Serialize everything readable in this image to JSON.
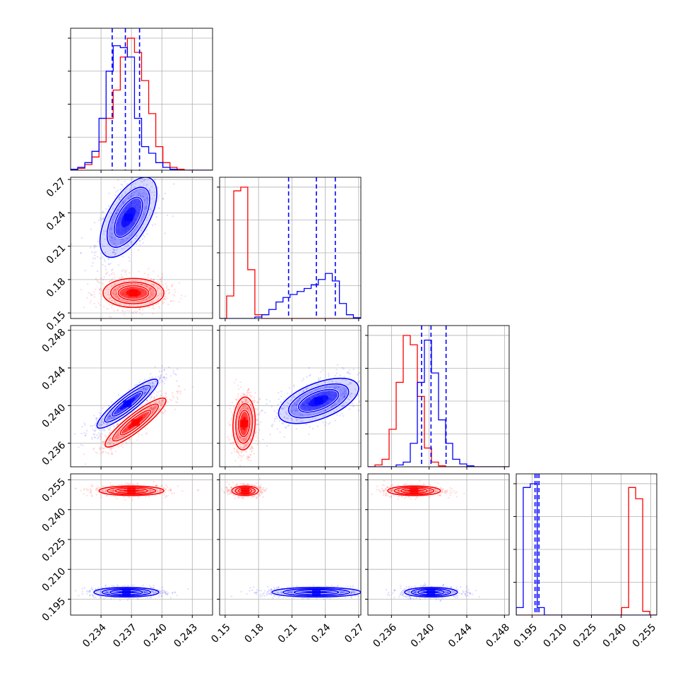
{
  "chart_data": {
    "type": "corner",
    "description_colors": {
      "series_a": "#0000ff",
      "series_b": "#ff0000"
    },
    "grid": true,
    "parameters": [
      {
        "range": [
          0.231,
          0.245
        ]
      },
      {
        "range": [
          0.145,
          0.272
        ]
      },
      {
        "range": [
          0.2335,
          0.2485
        ]
      },
      {
        "range": [
          0.187,
          0.258
        ]
      }
    ],
    "tick_labels": [
      [
        "0.234",
        "0.237",
        "0.240",
        "0.243"
      ],
      [
        "0.15",
        "0.18",
        "0.21",
        "0.24",
        "0.27"
      ],
      [
        "0.236",
        "0.240",
        "0.244",
        "0.248"
      ],
      [
        "0.195",
        "0.210",
        "0.225",
        "0.240",
        "0.255"
      ]
    ],
    "tick_values": [
      [
        0.234,
        0.237,
        0.24,
        0.243
      ],
      [
        0.15,
        0.18,
        0.21,
        0.24,
        0.27
      ],
      [
        0.236,
        0.24,
        0.244,
        0.248
      ],
      [
        0.195,
        0.21,
        0.225,
        0.24,
        0.255
      ]
    ],
    "quantiles_blue": [
      [
        0.2351,
        0.2364,
        0.2378
      ],
      [
        0.207,
        0.232,
        0.249
      ],
      [
        0.2392,
        0.2402,
        0.2418
      ],
      [
        0.1965,
        0.1975,
        0.1985
      ]
    ],
    "series": [
      {
        "color": "#0000ff",
        "means": [
          0.2365,
          0.23,
          0.2402,
          0.1975
        ],
        "sds": [
          0.0012,
          0.02,
          0.0011,
          0.0012
        ]
      },
      {
        "color": "#ff0000",
        "means": [
          0.2372,
          0.168,
          0.2385,
          0.2495
        ],
        "sds": [
          0.0012,
          0.006,
          0.0012,
          0.0015
        ]
      }
    ],
    "blobs": [
      {
        "i": 0,
        "j": 1,
        "color": "#0000ff",
        "center": [
          0.2367,
          0.236
        ],
        "sx": 0.0014,
        "sy": 0.018,
        "rho": 0.6
      },
      {
        "i": 0,
        "j": 1,
        "color": "#ff0000",
        "center": [
          0.2372,
          0.168
        ],
        "sx": 0.0015,
        "sy": 0.0065,
        "rho": 0.0
      },
      {
        "i": 0,
        "j": 2,
        "color": "#0000ff",
        "center": [
          0.2366,
          0.2402
        ],
        "sx": 0.0015,
        "sy": 0.0013,
        "rho": 0.9
      },
      {
        "i": 0,
        "j": 2,
        "color": "#ff0000",
        "center": [
          0.2374,
          0.2382
        ],
        "sx": 0.0015,
        "sy": 0.0013,
        "rho": 0.9
      },
      {
        "i": 1,
        "j": 2,
        "color": "#0000ff",
        "center": [
          0.234,
          0.2405
        ],
        "sx": 0.018,
        "sy": 0.0012,
        "rho": 0.55
      },
      {
        "i": 1,
        "j": 2,
        "color": "#ff0000",
        "center": [
          0.167,
          0.2381
        ],
        "sx": 0.005,
        "sy": 0.0014,
        "rho": 0.1
      },
      {
        "i": 0,
        "j": 3,
        "color": "#ff0000",
        "center": [
          0.237,
          0.2495
        ],
        "sx": 0.0016,
        "sy": 0.0012,
        "rho": 0.0
      },
      {
        "i": 0,
        "j": 3,
        "color": "#0000ff",
        "center": [
          0.2365,
          0.1985
        ],
        "sx": 0.0016,
        "sy": 0.0012,
        "rho": 0.0
      },
      {
        "i": 1,
        "j": 3,
        "color": "#ff0000",
        "center": [
          0.168,
          0.2495
        ],
        "sx": 0.006,
        "sy": 0.0012,
        "rho": 0.0
      },
      {
        "i": 1,
        "j": 3,
        "color": "#0000ff",
        "center": [
          0.232,
          0.1985
        ],
        "sx": 0.02,
        "sy": 0.0012,
        "rho": 0.0
      },
      {
        "i": 2,
        "j": 3,
        "color": "#ff0000",
        "center": [
          0.2384,
          0.2495
        ],
        "sx": 0.0014,
        "sy": 0.0012,
        "rho": 0.0
      },
      {
        "i": 2,
        "j": 3,
        "color": "#0000ff",
        "center": [
          0.2402,
          0.1985
        ],
        "sx": 0.0014,
        "sy": 0.0012,
        "rho": 0.0
      }
    ],
    "histograms": [
      {
        "bins": [
          0.231,
          0.2317,
          0.2324,
          0.2331,
          0.2338,
          0.2345,
          0.2352,
          0.2359,
          0.2366,
          0.2373,
          0.238,
          0.2387,
          0.2394,
          0.2401,
          0.2408,
          0.2415,
          0.2422,
          0.2429,
          0.2436,
          0.2443,
          0.245
        ],
        "blue": [
          1,
          3,
          8,
          20,
          55,
          105,
          132,
          130,
          120,
          55,
          25,
          18,
          8,
          3,
          1,
          0,
          0,
          0,
          0,
          0
        ],
        "red": [
          0,
          2,
          6,
          14,
          30,
          55,
          85,
          120,
          140,
          125,
          95,
          60,
          25,
          8,
          3,
          1,
          0,
          0,
          0,
          0
        ]
      },
      {
        "bins": [
          0.145,
          0.1513,
          0.1577,
          0.164,
          0.1703,
          0.1767,
          0.183,
          0.1893,
          0.1957,
          0.202,
          0.2083,
          0.2147,
          0.221,
          0.2273,
          0.2337,
          0.24,
          0.2463,
          0.2527,
          0.259,
          0.2653,
          0.272
        ],
        "blue": [
          0,
          0,
          0,
          0,
          0,
          2,
          5,
          12,
          22,
          28,
          32,
          36,
          40,
          45,
          52,
          60,
          50,
          20,
          5,
          1
        ],
        "red": [
          0,
          30,
          170,
          175,
          65,
          5,
          0,
          0,
          0,
          0,
          0,
          0,
          0,
          0,
          0,
          0,
          0,
          0,
          0,
          0
        ]
      },
      {
        "bins": [
          0.2335,
          0.23425,
          0.235,
          0.23575,
          0.2365,
          0.23725,
          0.238,
          0.23875,
          0.2395,
          0.24025,
          0.241,
          0.24175,
          0.2425,
          0.24325,
          0.244,
          0.24475,
          0.2455,
          0.24625,
          0.247,
          0.24775,
          0.2485
        ],
        "blue": [
          0,
          0,
          0,
          0,
          2,
          5,
          25,
          90,
          135,
          100,
          50,
          25,
          8,
          3,
          1,
          0,
          0,
          0,
          0,
          0
        ],
        "red": [
          0,
          2,
          8,
          40,
          90,
          140,
          130,
          75,
          20,
          5,
          1,
          0,
          0,
          0,
          0,
          0,
          0,
          0,
          0,
          0
        ]
      },
      {
        "bins": [
          0.187,
          0.19055,
          0.1941,
          0.19765,
          0.2012,
          0.20475,
          0.2083,
          0.21185,
          0.2154,
          0.21895,
          0.2225,
          0.22605,
          0.2296,
          0.23315,
          0.2367,
          0.24025,
          0.2438,
          0.24735,
          0.2509,
          0.25445,
          0.258
        ],
        "blue": [
          10,
          170,
          175,
          10,
          0,
          0,
          0,
          0,
          0,
          0,
          0,
          0,
          0,
          0,
          0,
          0,
          0,
          0,
          0,
          0
        ],
        "red": [
          0,
          0,
          0,
          0,
          0,
          0,
          0,
          0,
          0,
          0,
          0,
          0,
          0,
          0,
          0,
          10,
          170,
          155,
          5,
          0
        ]
      }
    ]
  }
}
